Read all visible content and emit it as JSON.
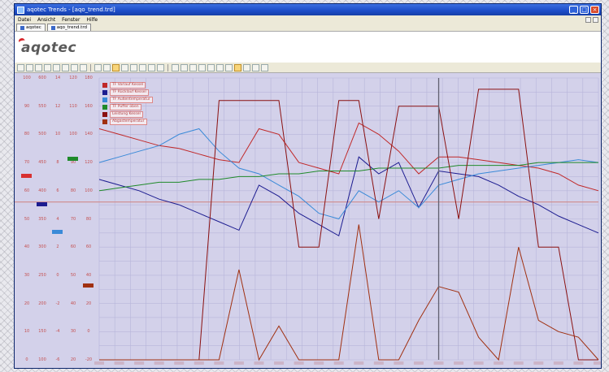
{
  "window": {
    "title": "aqotec Trends - [aqo_trend.trd]",
    "icon": "app-icon",
    "buttons": [
      "minimize-icon",
      "maximize-icon",
      "close-icon"
    ]
  },
  "menubar": {
    "items": [
      "Datei",
      "Ansicht",
      "Fenster",
      "Hilfe"
    ]
  },
  "tabs": [
    "aqotec",
    "aqo_trend.trd"
  ],
  "logo": {
    "text": "aqotec",
    "accent_color": "#d8262a"
  },
  "toolbar": {
    "button_count": 27,
    "active_indices": [
      10,
      23
    ]
  },
  "colors": {
    "plot_background": "#d3d1ea",
    "grid": "#b7b5da",
    "scale_text": "#c55050",
    "cursor_line": "#606070"
  },
  "scales": [
    {
      "ticks": [
        "100",
        "90",
        "80",
        "70",
        "60",
        "50",
        "40",
        "30",
        "20",
        "10",
        "0"
      ]
    },
    {
      "ticks": [
        "600",
        "550",
        "500",
        "450",
        "400",
        "350",
        "300",
        "250",
        "200",
        "150",
        "100"
      ]
    },
    {
      "ticks": [
        "14",
        "12",
        "10",
        "8",
        "6",
        "4",
        "2",
        "0",
        "-2",
        "-4",
        "-6"
      ]
    },
    {
      "ticks": [
        "120",
        "110",
        "100",
        "90",
        "80",
        "70",
        "60",
        "50",
        "40",
        "30",
        "20"
      ]
    },
    {
      "ticks": [
        "180",
        "160",
        "140",
        "120",
        "100",
        "80",
        "60",
        "40",
        "20",
        "0",
        "-20"
      ]
    }
  ],
  "legend": [
    {
      "label": "TF Vorlauf Kessel",
      "color": "#c02828"
    },
    {
      "label": "TF Rücklauf Kessel",
      "color": "#1c1c90"
    },
    {
      "label": "TF Außentemperatur",
      "color": "#3a8ad8"
    },
    {
      "label": "TF Puffer oben",
      "color": "#1f8a2a"
    },
    {
      "label": "Leistung Kessel",
      "color": "#8a1010"
    },
    {
      "label": "Abgastemperatur",
      "color": "#a03010"
    }
  ],
  "chart_data": {
    "type": "line",
    "x": [
      0,
      4,
      8,
      12,
      16,
      20,
      24,
      28,
      32,
      36,
      40,
      44,
      48,
      52,
      56,
      60,
      64,
      68,
      72,
      76,
      80,
      84,
      88,
      92,
      96,
      100
    ],
    "series": [
      {
        "name": "TF Vorlauf Kessel",
        "color": "#c02828",
        "values": [
          82,
          80,
          78,
          76,
          75,
          73,
          71,
          70,
          82,
          80,
          70,
          68,
          66,
          84,
          80,
          74,
          66,
          72,
          72,
          71,
          70,
          69,
          68,
          66,
          62,
          60
        ]
      },
      {
        "name": "TF Rücklauf Kessel",
        "color": "#1c1c90",
        "values": [
          64,
          62,
          60,
          57,
          55,
          52,
          49,
          46,
          62,
          58,
          52,
          48,
          44,
          72,
          66,
          70,
          54,
          67,
          66,
          65,
          62,
          58,
          55,
          51,
          48,
          45
        ]
      },
      {
        "name": "TF Außentemperatur",
        "color": "#3a8ad8",
        "values": [
          70,
          72,
          74,
          76,
          80,
          82,
          74,
          68,
          66,
          62,
          58,
          52,
          50,
          60,
          56,
          60,
          54,
          62,
          64,
          66,
          67,
          68,
          69,
          70,
          71,
          70
        ]
      },
      {
        "name": "TF Puffer oben",
        "color": "#1f8a2a",
        "values": [
          60,
          61,
          62,
          63,
          63,
          64,
          64,
          65,
          65,
          66,
          66,
          67,
          67,
          67,
          68,
          68,
          68,
          68,
          69,
          69,
          69,
          69,
          70,
          70,
          70,
          70
        ]
      },
      {
        "name": "Leistung Kessel",
        "color": "#8a1010",
        "values": [
          0,
          0,
          0,
          0,
          0,
          0,
          92,
          92,
          92,
          92,
          40,
          40,
          92,
          92,
          50,
          90,
          90,
          90,
          50,
          96,
          96,
          96,
          40,
          40,
          0,
          0
        ]
      },
      {
        "name": "Abgastemperatur",
        "color": "#a03010",
        "values": [
          0,
          0,
          0,
          0,
          0,
          0,
          0,
          32,
          0,
          12,
          0,
          0,
          0,
          48,
          0,
          0,
          14,
          26,
          24,
          8,
          0,
          40,
          14,
          10,
          8,
          0
        ]
      }
    ],
    "ylim": [
      0,
      100
    ],
    "grid": true,
    "legend_position": "top-left",
    "cursor": {
      "x": 68
    }
  }
}
